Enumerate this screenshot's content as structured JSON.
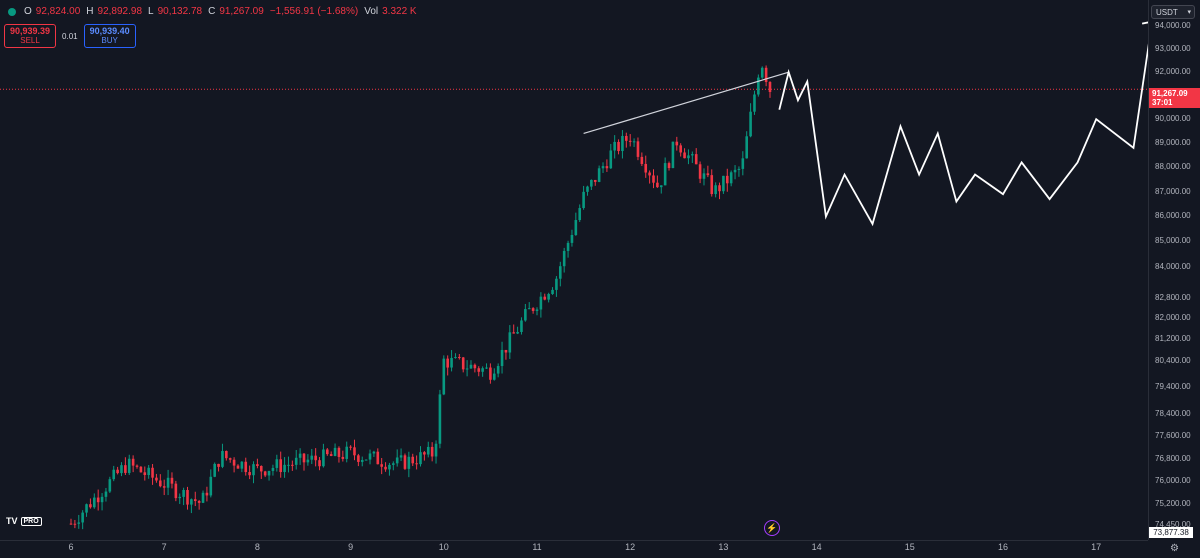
{
  "header": {
    "o_key": "O",
    "o_val": "92,824.00",
    "h_key": "H",
    "h_val": "92,892.98",
    "l_key": "L",
    "l_val": "90,132.78",
    "c_key": "C",
    "c_val": "91,267.09",
    "change": "−1,556.91 (−1.68%)",
    "vol_key": "Vol",
    "vol_val": "3.322 K"
  },
  "trade": {
    "sell_price": "90,939.39",
    "sell_label": "SELL",
    "spread": "0.01",
    "buy_price": "90,939.40",
    "buy_label": "BUY"
  },
  "currency": "USDT",
  "last_price": {
    "value": "91,267.09",
    "countdown": "37:01"
  },
  "low_marker": "73,877.38",
  "logo": {
    "mark": "TV",
    "tier": "PRO"
  },
  "colors": {
    "background": "#131722",
    "up": "#089981",
    "down": "#f23645",
    "buy": "#2962ff"
  },
  "icons": {
    "flash": "lightning-icon",
    "settings": "gear-icon"
  },
  "chart_data": {
    "type": "candlestick",
    "scale": "log",
    "price_ticks": [
      "94,000.00",
      "93,000.00",
      "92,000.00",
      "91,000.00",
      "90,000.00",
      "89,000.00",
      "88,000.00",
      "87,000.00",
      "86,000.00",
      "85,000.00",
      "84,000.00",
      "82,800.00",
      "82,000.00",
      "81,200.00",
      "80,400.00",
      "79,400.00",
      "78,400.00",
      "77,600.00",
      "76,800.00",
      "76,000.00",
      "75,200.00",
      "74,450.00"
    ],
    "time_ticks": [
      "6",
      "7",
      "8",
      "9",
      "10",
      "11",
      "12",
      "13",
      "14",
      "15",
      "16",
      "17"
    ],
    "ylim": [
      74000,
      94800
    ],
    "xlim": [
      5.7,
      17.5
    ],
    "key_closes": [
      {
        "day": 6.0,
        "close": 74500
      },
      {
        "day": 6.6,
        "close": 76600
      },
      {
        "day": 7.4,
        "close": 75200
      },
      {
        "day": 7.6,
        "close": 76900
      },
      {
        "day": 8.0,
        "close": 76400
      },
      {
        "day": 8.5,
        "close": 76700
      },
      {
        "day": 9.0,
        "close": 77000
      },
      {
        "day": 9.5,
        "close": 76600
      },
      {
        "day": 9.9,
        "close": 77000
      },
      {
        "day": 10.0,
        "close": 80400
      },
      {
        "day": 10.5,
        "close": 80000
      },
      {
        "day": 10.9,
        "close": 82200
      },
      {
        "day": 11.2,
        "close": 83500
      },
      {
        "day": 11.5,
        "close": 86800
      },
      {
        "day": 11.8,
        "close": 88600
      },
      {
        "day": 12.0,
        "close": 89300
      },
      {
        "day": 12.3,
        "close": 87200
      },
      {
        "day": 12.5,
        "close": 89100
      },
      {
        "day": 12.9,
        "close": 87000
      },
      {
        "day": 13.2,
        "close": 88000
      },
      {
        "day": 13.4,
        "close": 92600
      },
      {
        "day": 13.5,
        "close": 91267
      }
    ],
    "trend_line": [
      {
        "day": 11.5,
        "price": 89400
      },
      {
        "day": 13.7,
        "price": 92000
      }
    ],
    "projection": [
      {
        "day": 13.6,
        "price": 90400
      },
      {
        "day": 13.7,
        "price": 92000
      },
      {
        "day": 13.8,
        "price": 90800
      },
      {
        "day": 13.9,
        "price": 91600
      },
      {
        "day": 14.1,
        "price": 86000
      },
      {
        "day": 14.3,
        "price": 87700
      },
      {
        "day": 14.6,
        "price": 85700
      },
      {
        "day": 14.9,
        "price": 89700
      },
      {
        "day": 15.1,
        "price": 87700
      },
      {
        "day": 15.3,
        "price": 89400
      },
      {
        "day": 15.5,
        "price": 86600
      },
      {
        "day": 15.7,
        "price": 87700
      },
      {
        "day": 16.0,
        "price": 86900
      },
      {
        "day": 16.2,
        "price": 88200
      },
      {
        "day": 16.5,
        "price": 86700
      },
      {
        "day": 16.8,
        "price": 88200
      },
      {
        "day": 17.0,
        "price": 90000
      },
      {
        "day": 17.4,
        "price": 88800
      },
      {
        "day": 17.6,
        "price": 94200
      }
    ],
    "last_price_line": 91267
  }
}
